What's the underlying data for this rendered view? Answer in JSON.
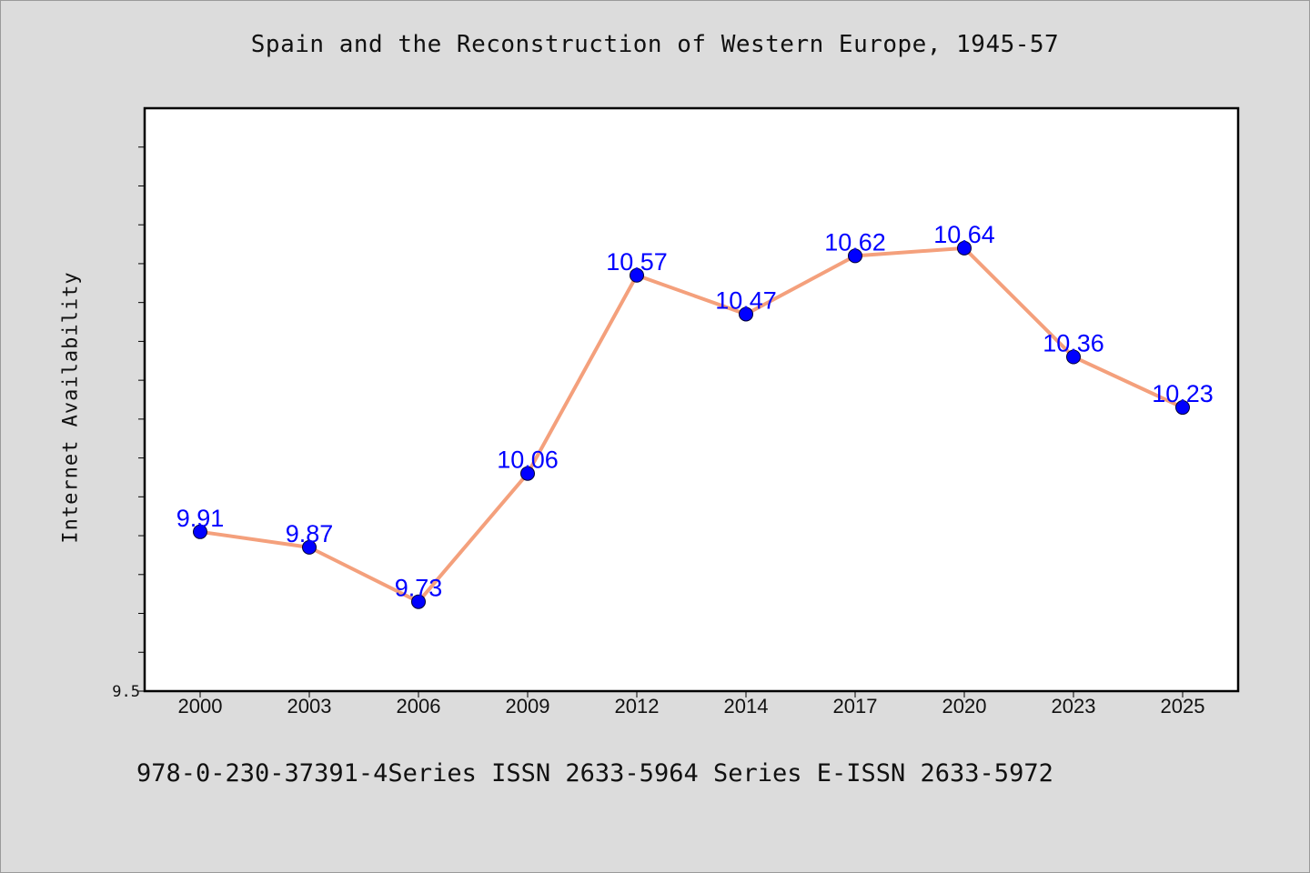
{
  "chart_data": {
    "type": "line",
    "title": "Spain and the Reconstruction of Western Europe, 1945-57",
    "xlabel": "",
    "ylabel": "Internet Availability",
    "categories": [
      "2000",
      "2003",
      "2006",
      "2009",
      "2012",
      "2014",
      "2017",
      "2020",
      "2023",
      "2025"
    ],
    "series": [
      {
        "values": [
          9.91,
          9.87,
          9.73,
          10.06,
          10.57,
          10.47,
          10.62,
          10.64,
          10.36,
          10.23
        ],
        "labels": [
          "9.91",
          "9.87",
          "9.73",
          "10.06",
          "10.57",
          "10.47",
          "10.62",
          "10.64",
          "10.36",
          "10.23"
        ]
      }
    ],
    "ylim": [
      9.5,
      11.0
    ],
    "y_tick_labels": [
      "9.5"
    ],
    "grid": false,
    "colors": {
      "line": "#f4a07c",
      "marker": "#0000ff",
      "marker_edge": "#000033",
      "data_label": "#0000ff",
      "background": "#dcdcdc",
      "plot_background": "#ffffff"
    }
  },
  "footer": {
    "text": "978-0-230-37391-4Series ISSN 2633-5964 Series E-ISSN 2633-5972"
  }
}
